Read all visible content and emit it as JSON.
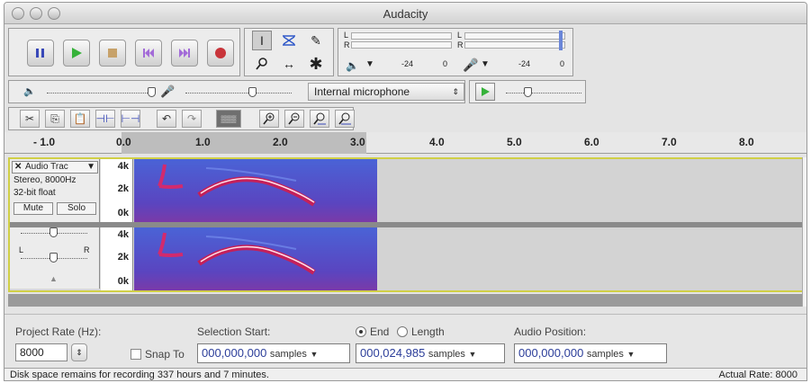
{
  "window": {
    "title": "Audacity"
  },
  "meters": {
    "playback_l": "L",
    "playback_r": "R",
    "record_l": "L",
    "record_r": "R",
    "tick_neg24": "-24",
    "tick_0": "0",
    "rec_tick_neg24": "-24",
    "rec_tick_0": "0"
  },
  "mixer": {
    "input_source": "Internal microphone"
  },
  "ruler": {
    "ticks": [
      "- 1.0",
      "0.0",
      "1.0",
      "2.0",
      "3.0",
      "4.0",
      "5.0",
      "6.0",
      "7.0",
      "8.0"
    ]
  },
  "track": {
    "name": "Audio Trac",
    "format_line1": "Stereo, 8000Hz",
    "format_line2": "32-bit float",
    "mute_label": "Mute",
    "solo_label": "Solo",
    "gain_minus": "-",
    "gain_plus": "+",
    "pan_left": "L",
    "pan_right": "R",
    "scale": [
      "4k",
      "2k",
      "0k"
    ]
  },
  "selection": {
    "project_rate_label": "Project Rate (Hz):",
    "project_rate_value": "8000",
    "snap_to_label": "Snap To",
    "selection_start_label": "Selection Start:",
    "selection_start_value": "000,000,000",
    "selection_start_unit": "samples",
    "end_label": "End",
    "length_label": "Length",
    "end_value": "000,024,985",
    "end_unit": "samples",
    "audio_position_label": "Audio Position:",
    "audio_position_value": "000,000,000",
    "audio_position_unit": "samples"
  },
  "status": {
    "disk_space": "Disk space remains for recording 337 hours and 7 minutes.",
    "actual_rate": "Actual Rate: 8000"
  },
  "colors": {
    "track_border": "#d0cf46",
    "spectrogram_bg": "#3e55c6",
    "time_text": "#2c3e9a"
  }
}
